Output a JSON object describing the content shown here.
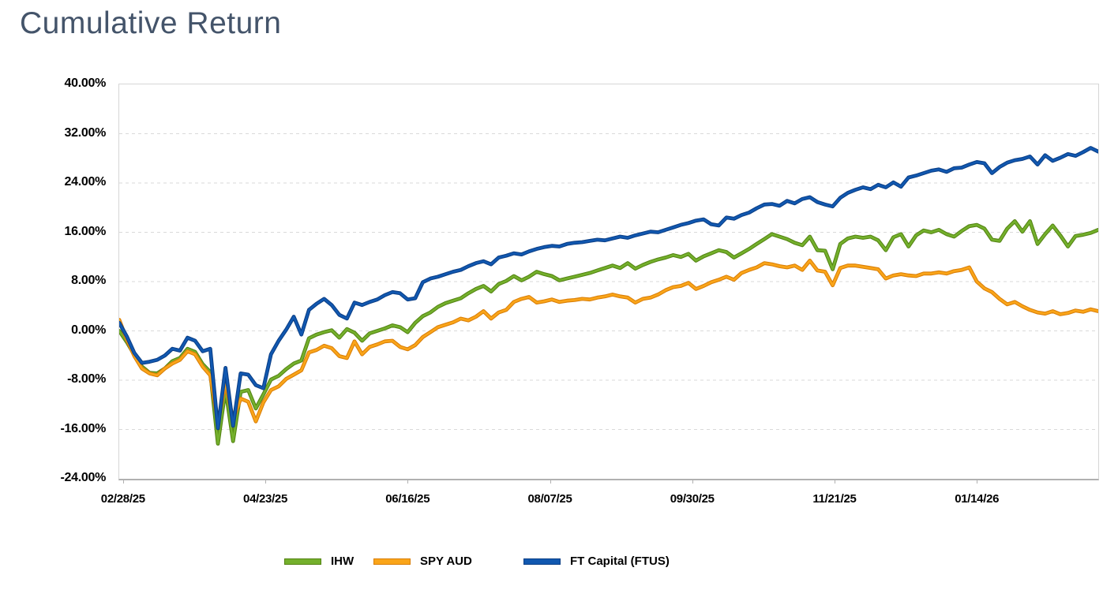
{
  "title": "Cumulative Return",
  "chart_data": {
    "type": "line",
    "title": "Cumulative Return",
    "grid": "horizontal-dashed",
    "legend_position": "bottom",
    "y_axis": {
      "unit": "%",
      "max": 40,
      "min": -24,
      "step": 8,
      "ticks": [
        "40.00%",
        "32.00%",
        "24.00%",
        "16.00%",
        "8.00%",
        "0.00%",
        "-8.00%",
        "-16.00%",
        "-24.00%"
      ]
    },
    "x_axis": {
      "ticks": [
        "02/28/25",
        "04/23/25",
        "06/16/25",
        "08/07/25",
        "09/30/25",
        "11/21/25",
        "01/14/26"
      ]
    },
    "series": [
      {
        "id": "ihw",
        "name": "IHW",
        "color": "#74B02C",
        "edge_color": "#538312",
        "values": [
          0.0,
          -1.8,
          -3.9,
          -5.8,
          -6.8,
          -6.9,
          -6.1,
          -4.9,
          -4.4,
          -2.9,
          -3.4,
          -5.4,
          -6.7,
          -18.3,
          -9.5,
          -17.9,
          -9.9,
          -9.6,
          -12.6,
          -10.3,
          -7.9,
          -7.3,
          -6.2,
          -5.3,
          -4.8,
          -1.2,
          -0.6,
          -0.2,
          0.1,
          -1.1,
          0.3,
          -0.3,
          -1.6,
          -0.4,
          0.0,
          0.4,
          0.9,
          0.6,
          -0.2,
          1.3,
          2.4,
          3.0,
          3.9,
          4.5,
          4.9,
          5.3,
          6.1,
          6.8,
          7.3,
          6.4,
          7.6,
          8.1,
          8.9,
          8.2,
          8.8,
          9.6,
          9.2,
          8.9,
          8.2,
          8.5,
          8.8,
          9.1,
          9.4,
          9.8,
          10.2,
          10.6,
          10.2,
          11.0,
          10.1,
          10.7,
          11.2,
          11.6,
          11.9,
          12.3,
          12.0,
          12.5,
          11.4,
          12.1,
          12.6,
          13.1,
          12.8,
          11.9,
          12.6,
          13.3,
          14.1,
          14.9,
          15.7,
          15.3,
          14.9,
          14.3,
          13.9,
          15.3,
          13.1,
          13.0,
          10.0,
          14.1,
          15.0,
          15.3,
          15.1,
          15.3,
          14.7,
          13.1,
          15.2,
          15.7,
          13.7,
          15.5,
          16.3,
          16.0,
          16.4,
          15.7,
          15.3,
          16.2,
          17.0,
          17.2,
          16.6,
          14.8,
          14.6,
          16.6,
          17.8,
          16.1,
          17.8,
          14.1,
          15.7,
          17.1,
          15.5,
          13.7,
          15.4,
          15.6,
          15.9,
          16.4
        ]
      },
      {
        "id": "spy-aud",
        "name": "SPY AUD",
        "color": "#FAA519",
        "edge_color": "#D97E07",
        "values": [
          1.8,
          -1.4,
          -4.1,
          -6.1,
          -6.9,
          -7.2,
          -6.1,
          -5.3,
          -4.7,
          -3.3,
          -3.8,
          -5.8,
          -7.2,
          -14.9,
          -8.5,
          -14.4,
          -11.0,
          -11.5,
          -14.7,
          -11.6,
          -9.6,
          -9.0,
          -7.8,
          -7.1,
          -6.4,
          -3.5,
          -3.1,
          -2.4,
          -2.8,
          -4.1,
          -4.4,
          -1.7,
          -3.8,
          -2.6,
          -2.2,
          -1.7,
          -1.6,
          -2.6,
          -3.0,
          -2.3,
          -1.0,
          -0.2,
          0.6,
          1.0,
          1.4,
          2.0,
          1.7,
          2.3,
          3.2,
          2.0,
          3.0,
          3.4,
          4.7,
          5.2,
          5.5,
          4.6,
          4.8,
          5.1,
          4.7,
          4.9,
          5.0,
          5.2,
          5.1,
          5.4,
          5.6,
          5.9,
          5.6,
          5.4,
          4.6,
          5.2,
          5.4,
          5.9,
          6.6,
          7.1,
          7.3,
          7.8,
          6.8,
          7.3,
          7.9,
          8.3,
          8.8,
          8.3,
          9.4,
          9.9,
          10.3,
          11.0,
          10.8,
          10.5,
          10.3,
          10.6,
          9.9,
          11.4,
          9.8,
          9.6,
          7.4,
          10.2,
          10.6,
          10.6,
          10.4,
          10.2,
          10.0,
          8.5,
          9.0,
          9.2,
          9.0,
          8.9,
          9.3,
          9.3,
          9.5,
          9.3,
          9.7,
          9.9,
          10.3,
          8.0,
          6.9,
          6.3,
          5.2,
          4.3,
          4.7,
          4.0,
          3.4,
          3.0,
          2.8,
          3.2,
          2.7,
          2.9,
          3.3,
          3.1,
          3.5,
          3.2
        ]
      },
      {
        "id": "ft-capital",
        "name": "FT Capital (FTUS)",
        "color": "#1158B0",
        "edge_color": "#0A3E86",
        "values": [
          1.3,
          -0.9,
          -3.6,
          -5.2,
          -5.0,
          -4.7,
          -4.0,
          -2.9,
          -3.2,
          -1.1,
          -1.6,
          -3.3,
          -2.9,
          -15.8,
          -6.0,
          -15.4,
          -6.9,
          -7.1,
          -8.8,
          -9.3,
          -3.8,
          -1.6,
          0.2,
          2.3,
          -0.6,
          3.4,
          4.4,
          5.2,
          4.2,
          2.6,
          2.0,
          4.6,
          4.2,
          4.7,
          5.1,
          5.8,
          6.3,
          6.1,
          5.1,
          5.3,
          7.9,
          8.5,
          8.8,
          9.2,
          9.6,
          9.9,
          10.5,
          11.0,
          11.3,
          10.8,
          11.9,
          12.2,
          12.6,
          12.4,
          12.9,
          13.3,
          13.6,
          13.8,
          13.7,
          14.1,
          14.3,
          14.4,
          14.6,
          14.8,
          14.7,
          15.0,
          15.3,
          15.1,
          15.5,
          15.8,
          16.1,
          16.0,
          16.4,
          16.8,
          17.2,
          17.5,
          17.9,
          18.1,
          17.3,
          17.1,
          18.4,
          18.2,
          18.8,
          19.2,
          19.9,
          20.5,
          20.6,
          20.3,
          21.1,
          20.7,
          21.4,
          21.7,
          20.9,
          20.5,
          20.2,
          21.6,
          22.4,
          22.9,
          23.3,
          23.0,
          23.7,
          23.3,
          24.1,
          23.4,
          24.9,
          25.2,
          25.6,
          26.0,
          26.2,
          25.8,
          26.4,
          26.5,
          27.0,
          27.4,
          27.2,
          25.6,
          26.6,
          27.3,
          27.7,
          27.9,
          28.3,
          27.0,
          28.5,
          27.6,
          28.1,
          28.7,
          28.4,
          29.0,
          29.7,
          29.1
        ]
      }
    ]
  }
}
